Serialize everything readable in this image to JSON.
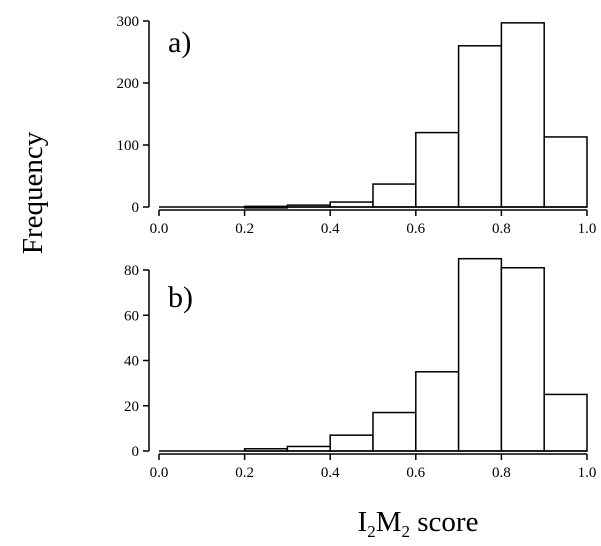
{
  "figure": {
    "ylabel": "Frequency",
    "xlabel": {
      "I": "I",
      "sub1": "2",
      "M": "M",
      "sub2": "2",
      "rest": " score"
    }
  },
  "chart_data": [
    {
      "type": "bar",
      "panel_label": "a)",
      "bin_edges": [
        0.0,
        0.1,
        0.2,
        0.3,
        0.4,
        0.5,
        0.6,
        0.7,
        0.8,
        0.9,
        1.0
      ],
      "values": [
        0,
        0,
        1,
        3,
        8,
        37,
        120,
        260,
        297,
        113
      ],
      "xlim": [
        0.0,
        1.0
      ],
      "ylim": [
        0,
        300
      ],
      "xticks": [
        "0.0",
        "0.2",
        "0.4",
        "0.6",
        "0.8",
        "1.0"
      ],
      "yticks": [
        "0",
        "100",
        "200",
        "300"
      ],
      "xlabel": "",
      "ylabel": "Frequency",
      "grid": false
    },
    {
      "type": "bar",
      "panel_label": "b)",
      "bin_edges": [
        0.0,
        0.1,
        0.2,
        0.3,
        0.4,
        0.5,
        0.6,
        0.7,
        0.8,
        0.9,
        1.0
      ],
      "values": [
        0,
        0,
        1,
        2,
        7,
        17,
        35,
        85,
        81,
        25
      ],
      "xlim": [
        0.0,
        1.0
      ],
      "ylim": [
        0,
        80
      ],
      "xticks": [
        "0.0",
        "0.2",
        "0.4",
        "0.6",
        "0.8",
        "1.0"
      ],
      "yticks": [
        "0",
        "20",
        "40",
        "60",
        "80"
      ],
      "xlabel": "",
      "ylabel": "Frequency",
      "grid": false
    }
  ]
}
